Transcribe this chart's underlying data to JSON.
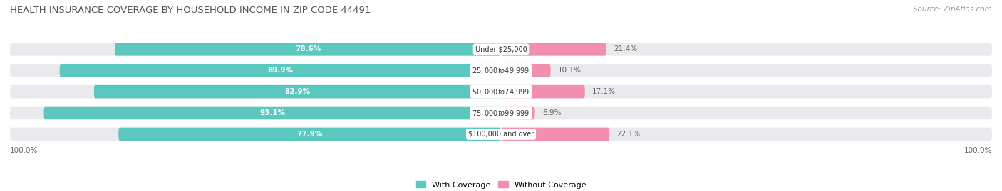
{
  "title": "HEALTH INSURANCE COVERAGE BY HOUSEHOLD INCOME IN ZIP CODE 44491",
  "source": "Source: ZipAtlas.com",
  "categories": [
    "Under $25,000",
    "$25,000 to $49,999",
    "$50,000 to $74,999",
    "$75,000 to $99,999",
    "$100,000 and over"
  ],
  "with_coverage": [
    78.6,
    89.9,
    82.9,
    93.1,
    77.9
  ],
  "without_coverage": [
    21.4,
    10.1,
    17.1,
    6.9,
    22.1
  ],
  "color_with": "#5BC8C0",
  "color_without": "#F28FAF",
  "background_color": "#FFFFFF",
  "bar_bg_color": "#EAEAEE",
  "legend_with": "With Coverage",
  "legend_without": "Without Coverage",
  "bar_height": 0.62,
  "title_fontsize": 9.5,
  "source_fontsize": 7.5,
  "label_fontsize": 7.5,
  "cat_fontsize": 7.0,
  "pct_fontsize": 7.5
}
